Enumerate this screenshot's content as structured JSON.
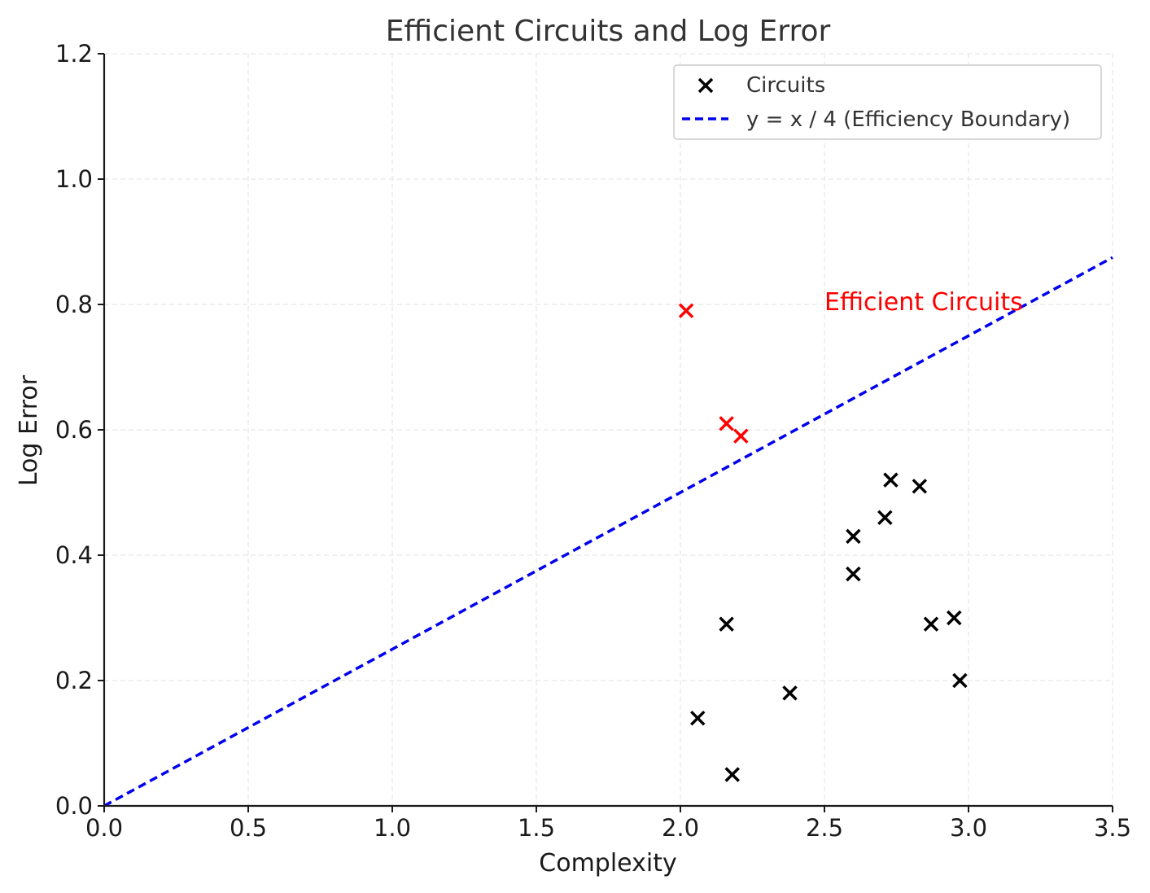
{
  "chart_data": {
    "type": "scatter",
    "title": "Efficient Circuits and Log Error",
    "xlabel": "Complexity",
    "ylabel": "Log Error",
    "xlim": [
      0.0,
      3.5
    ],
    "ylim": [
      0.0,
      1.2
    ],
    "x_ticks": [
      "0.0",
      "0.5",
      "1.0",
      "1.5",
      "2.0",
      "2.5",
      "3.0",
      "3.5"
    ],
    "y_ticks": [
      "0.0",
      "0.2",
      "0.4",
      "0.6",
      "0.8",
      "1.0",
      "1.2"
    ],
    "grid": true,
    "legend_position": "top-right",
    "series": [
      {
        "name": "Circuits",
        "marker": "x",
        "color": "#000000",
        "points": [
          {
            "x": 2.06,
            "y": 0.14
          },
          {
            "x": 2.16,
            "y": 0.29
          },
          {
            "x": 2.18,
            "y": 0.05
          },
          {
            "x": 2.38,
            "y": 0.18
          },
          {
            "x": 2.6,
            "y": 0.43
          },
          {
            "x": 2.6,
            "y": 0.37
          },
          {
            "x": 2.71,
            "y": 0.46
          },
          {
            "x": 2.73,
            "y": 0.52
          },
          {
            "x": 2.83,
            "y": 0.51
          },
          {
            "x": 2.87,
            "y": 0.29
          },
          {
            "x": 2.95,
            "y": 0.3
          },
          {
            "x": 2.97,
            "y": 0.2
          }
        ]
      },
      {
        "name": "",
        "marker": "x",
        "color": "#ff0000",
        "points": [
          {
            "x": 2.02,
            "y": 0.79
          },
          {
            "x": 2.16,
            "y": 0.61
          },
          {
            "x": 2.21,
            "y": 0.59
          }
        ]
      }
    ],
    "lines": [
      {
        "name": "y = x / 4 (Efficiency Boundary)",
        "style": "dashed",
        "color": "#0000ee",
        "x": [
          0.0,
          3.5
        ],
        "y": [
          0.0,
          0.875
        ]
      }
    ],
    "annotations": [
      {
        "text": "Efficient Circuits",
        "x": 2.5,
        "y": 0.8,
        "color": "#ff0000"
      }
    ]
  }
}
